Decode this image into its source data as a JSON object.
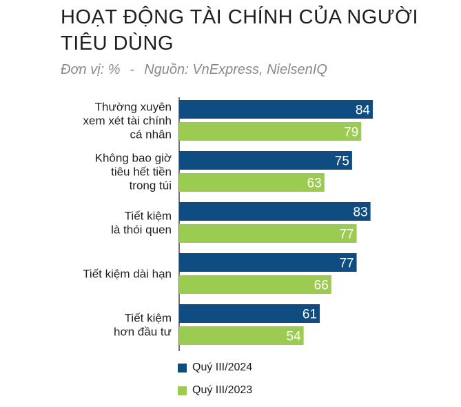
{
  "title": "HOẠT ĐỘNG TÀI CHÍNH CỦA NGƯỜI TIÊU DÙNG",
  "subtitle": {
    "unit": "Đơn vị: %",
    "separator": "-",
    "source": "Nguồn: VnExpress, NielsenIQ"
  },
  "colors": {
    "series_2024": "#0f4c81",
    "series_2023": "#9ccb52"
  },
  "chart_data": {
    "type": "bar",
    "orientation": "horizontal",
    "categories": [
      [
        "Thường xuyên",
        "xem xét tài chính",
        "cá nhân"
      ],
      [
        "Không bao giờ",
        "tiêu hết tiền",
        "trong túi"
      ],
      [
        "Tiết kiệm",
        "là thói quen"
      ],
      [
        "Tiết kiệm dài hạn"
      ],
      [
        "Tiết kiệm",
        "hơn đầu tư"
      ]
    ],
    "series": [
      {
        "name": "Quý III/2024",
        "values": [
          84,
          75,
          83,
          77,
          61
        ]
      },
      {
        "name": "Quý III/2023",
        "values": [
          79,
          63,
          77,
          66,
          54
        ]
      }
    ],
    "xlim": [
      0,
      84
    ],
    "grid": false,
    "legend": "bottom"
  }
}
